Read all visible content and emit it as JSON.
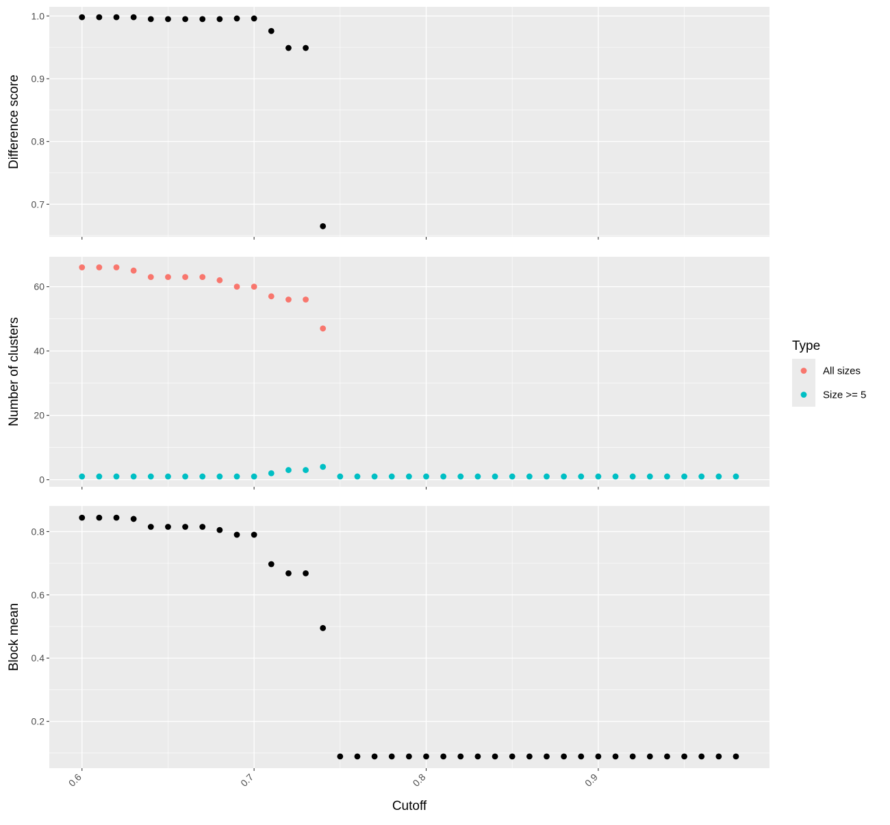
{
  "chart_data": {
    "type": "scatter",
    "xlabel": "Cutoff",
    "x_ticks": [
      "0.6",
      "0.7",
      "0.8",
      "0.9"
    ],
    "x_tick_values": [
      0.6,
      0.7,
      0.8,
      0.9
    ],
    "xlim": [
      0.581,
      0.9995
    ],
    "legend": {
      "title": "Type",
      "position": "right",
      "entries": [
        {
          "label": "All sizes",
          "color": "#F8766D"
        },
        {
          "label": "Size >= 5",
          "color": "#00BFC4"
        }
      ]
    },
    "colors": {
      "panel_bg": "#EBEBEB",
      "grid": "#FFFFFF",
      "point_default": "#000000"
    },
    "panels": [
      {
        "ylabel": "Difference score",
        "ylim": [
          0.648,
          1.0145
        ],
        "y_ticks": [
          "0.7",
          "0.8",
          "0.9",
          "1.0"
        ],
        "y_tick_values": [
          0.7,
          0.8,
          0.9,
          1.0
        ],
        "series": [
          {
            "color": "#000000",
            "x": [
              0.6,
              0.61,
              0.62,
              0.63,
              0.64,
              0.65,
              0.66,
              0.67,
              0.68,
              0.69,
              0.7,
              0.71,
              0.72,
              0.73,
              0.74
            ],
            "y": [
              0.998,
              0.998,
              0.998,
              0.998,
              0.995,
              0.995,
              0.995,
              0.995,
              0.995,
              0.996,
              0.996,
              0.976,
              0.949,
              0.949,
              0.665
            ]
          }
        ]
      },
      {
        "ylabel": "Number of clusters",
        "ylim": [
          -2.2,
          69.3
        ],
        "y_ticks": [
          "0",
          "20",
          "40",
          "60"
        ],
        "y_tick_values": [
          0,
          20,
          40,
          60
        ],
        "series": [
          {
            "name": "All sizes",
            "color": "#F8766D",
            "x": [
              0.6,
              0.61,
              0.62,
              0.63,
              0.64,
              0.65,
              0.66,
              0.67,
              0.68,
              0.69,
              0.7,
              0.71,
              0.72,
              0.73,
              0.74
            ],
            "y": [
              66,
              66,
              66,
              65,
              63,
              63,
              63,
              63,
              62,
              60,
              60,
              57,
              56,
              56,
              47
            ]
          },
          {
            "name": "Size >= 5",
            "color": "#00BFC4",
            "x": [
              0.6,
              0.61,
              0.62,
              0.63,
              0.64,
              0.65,
              0.66,
              0.67,
              0.68,
              0.69,
              0.7,
              0.71,
              0.72,
              0.73,
              0.74,
              0.75,
              0.76,
              0.77,
              0.78,
              0.79,
              0.8,
              0.81,
              0.82,
              0.83,
              0.84,
              0.85,
              0.86,
              0.87,
              0.88,
              0.89,
              0.9,
              0.91,
              0.92,
              0.93,
              0.94,
              0.95,
              0.96,
              0.97,
              0.98
            ],
            "y": [
              1,
              1,
              1,
              1,
              1,
              1,
              1,
              1,
              1,
              1,
              1,
              2,
              3,
              3,
              4,
              1,
              1,
              1,
              1,
              1,
              1,
              1,
              1,
              1,
              1,
              1,
              1,
              1,
              1,
              1,
              1,
              1,
              1,
              1,
              1,
              1,
              1,
              1,
              1
            ]
          }
        ]
      },
      {
        "ylabel": "Block mean",
        "ylim": [
          0.052,
          0.881
        ],
        "y_ticks": [
          "0.2",
          "0.4",
          "0.6",
          "0.8"
        ],
        "y_tick_values": [
          0.2,
          0.4,
          0.6,
          0.8
        ],
        "series": [
          {
            "color": "#000000",
            "x": [
              0.6,
              0.61,
              0.62,
              0.63,
              0.64,
              0.65,
              0.66,
              0.67,
              0.68,
              0.69,
              0.7,
              0.71,
              0.72,
              0.73,
              0.74,
              0.75,
              0.76,
              0.77,
              0.78,
              0.79,
              0.8,
              0.81,
              0.82,
              0.83,
              0.84,
              0.85,
              0.86,
              0.87,
              0.88,
              0.89,
              0.9,
              0.91,
              0.92,
              0.93,
              0.94,
              0.95,
              0.96,
              0.97,
              0.98
            ],
            "y": [
              0.844,
              0.844,
              0.844,
              0.84,
              0.815,
              0.815,
              0.815,
              0.815,
              0.805,
              0.79,
              0.79,
              0.697,
              0.668,
              0.668,
              0.495,
              0.089,
              0.089,
              0.089,
              0.089,
              0.089,
              0.089,
              0.089,
              0.089,
              0.089,
              0.089,
              0.089,
              0.089,
              0.089,
              0.089,
              0.089,
              0.089,
              0.089,
              0.089,
              0.089,
              0.089,
              0.089,
              0.089,
              0.089,
              0.089
            ]
          }
        ]
      }
    ]
  }
}
